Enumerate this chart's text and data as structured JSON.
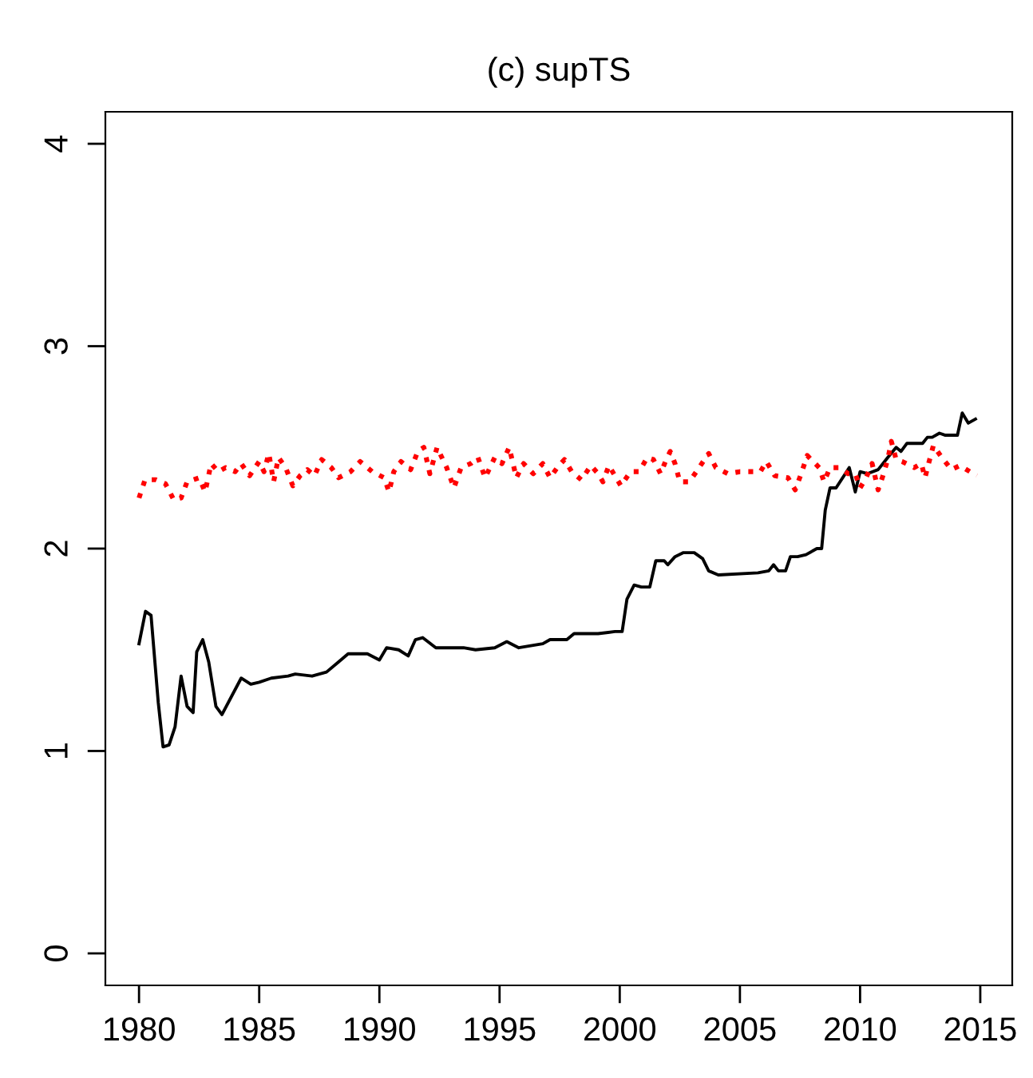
{
  "chart_data": {
    "type": "line",
    "title": "(c) supTS",
    "xlim": [
      1978.6,
      2016.33
    ],
    "ylim": [
      -0.158,
      4.158
    ],
    "xticks": [
      1980,
      1985,
      1990,
      1995,
      2000,
      2005,
      2010,
      2015
    ],
    "yticks": [
      0,
      1,
      2,
      3,
      4
    ],
    "grid": false,
    "legend": false,
    "series": [
      {
        "color": "#000000",
        "line_style": "solid",
        "x": [
          1980.0,
          1980.27,
          1980.5,
          1980.8,
          1981.0,
          1981.25,
          1981.5,
          1981.75,
          1982.0,
          1982.25,
          1982.4,
          1982.65,
          1982.9,
          1983.2,
          1983.45,
          1984.25,
          1984.65,
          1985.0,
          1985.5,
          1986.2,
          1986.5,
          1987.2,
          1987.8,
          1988.3,
          1988.7,
          1989.5,
          1990.0,
          1990.3,
          1990.8,
          1991.2,
          1991.5,
          1991.8,
          1992.35,
          1993.5,
          1994.0,
          1994.8,
          1995.3,
          1995.8,
          1996.8,
          1997.1,
          1997.8,
          1998.1,
          1999.1,
          1999.8,
          2000.1,
          2000.3,
          2000.6,
          2000.9,
          2001.25,
          2001.5,
          2001.85,
          2002.0,
          2002.3,
          2002.65,
          2003.1,
          2003.45,
          2003.7,
          2004.1,
          2005.75,
          2006.2,
          2006.4,
          2006.6,
          2006.9,
          2007.1,
          2007.4,
          2007.75,
          2008.2,
          2008.4,
          2008.55,
          2008.75,
          2009.0,
          2009.55,
          2009.8,
          2010.0,
          2010.3,
          2010.75,
          2011.15,
          2011.5,
          2011.7,
          2011.95,
          2012.6,
          2012.8,
          2013.0,
          2013.3,
          2013.55,
          2014.05,
          2014.25,
          2014.5,
          2014.8
        ],
        "values": [
          1.53,
          1.69,
          1.67,
          1.24,
          1.02,
          1.03,
          1.12,
          1.37,
          1.22,
          1.19,
          1.49,
          1.55,
          1.44,
          1.22,
          1.18,
          1.36,
          1.33,
          1.34,
          1.36,
          1.37,
          1.38,
          1.37,
          1.39,
          1.44,
          1.48,
          1.48,
          1.45,
          1.51,
          1.5,
          1.47,
          1.55,
          1.56,
          1.51,
          1.51,
          1.5,
          1.51,
          1.54,
          1.51,
          1.53,
          1.55,
          1.55,
          1.58,
          1.58,
          1.59,
          1.59,
          1.75,
          1.82,
          1.81,
          1.81,
          1.94,
          1.94,
          1.92,
          1.96,
          1.98,
          1.98,
          1.95,
          1.89,
          1.87,
          1.88,
          1.89,
          1.92,
          1.89,
          1.89,
          1.96,
          1.96,
          1.97,
          2.0,
          2.0,
          2.19,
          2.3,
          2.3,
          2.4,
          2.28,
          2.38,
          2.37,
          2.39,
          2.45,
          2.5,
          2.48,
          2.52,
          2.52,
          2.55,
          2.55,
          2.57,
          2.56,
          2.56,
          2.67,
          2.62,
          2.64
        ]
      },
      {
        "color": "#ff0000",
        "line_style": "dotted",
        "x": [
          1980.0,
          1980.25,
          1980.7,
          1981.1,
          1981.45,
          1981.75,
          1982.0,
          1982.5,
          1982.75,
          1983.0,
          1983.3,
          1983.6,
          1984.0,
          1984.25,
          1984.6,
          1985.0,
          1985.2,
          1985.4,
          1985.6,
          1985.8,
          1986.1,
          1986.4,
          1986.7,
          1987.0,
          1987.3,
          1987.6,
          1988.0,
          1988.3,
          1988.8,
          1989.2,
          1989.7,
          1990.2,
          1990.4,
          1990.6,
          1990.9,
          1991.3,
          1991.6,
          1991.85,
          1992.1,
          1992.4,
          1992.8,
          1993.1,
          1993.4,
          1993.8,
          1994.1,
          1994.4,
          1994.8,
          1995.1,
          1995.4,
          1995.7,
          1996.0,
          1996.4,
          1996.8,
          1997.1,
          1997.4,
          1997.7,
          1998.0,
          1998.4,
          1998.8,
          1999.1,
          1999.3,
          1999.55,
          2000.05,
          2000.45,
          2000.8,
          2001.15,
          2001.4,
          2001.7,
          2001.9,
          2002.1,
          2002.3,
          2002.5,
          2002.9,
          2003.3,
          2003.7,
          2004.0,
          2004.5,
          2005.0,
          2005.4,
          2005.85,
          2006.1,
          2006.45,
          2007.0,
          2007.3,
          2007.55,
          2007.8,
          2008.3,
          2008.5,
          2008.75,
          2009.15,
          2009.5,
          2009.8,
          2010.0,
          2010.25,
          2010.5,
          2010.75,
          2010.95,
          2011.15,
          2011.3,
          2011.5,
          2011.75,
          2012.25,
          2012.55,
          2012.7,
          2012.85,
          2013.05,
          2013.4,
          2013.8,
          2014.15,
          2014.85
        ],
        "values": [
          2.25,
          2.34,
          2.34,
          2.32,
          2.24,
          2.25,
          2.33,
          2.35,
          2.28,
          2.42,
          2.38,
          2.4,
          2.38,
          2.42,
          2.36,
          2.43,
          2.38,
          2.47,
          2.33,
          2.45,
          2.4,
          2.31,
          2.36,
          2.39,
          2.36,
          2.44,
          2.4,
          2.35,
          2.38,
          2.43,
          2.38,
          2.35,
          2.28,
          2.38,
          2.43,
          2.39,
          2.48,
          2.5,
          2.37,
          2.5,
          2.4,
          2.3,
          2.4,
          2.42,
          2.45,
          2.35,
          2.45,
          2.42,
          2.5,
          2.35,
          2.42,
          2.37,
          2.42,
          2.35,
          2.4,
          2.44,
          2.38,
          2.34,
          2.41,
          2.37,
          2.33,
          2.41,
          2.31,
          2.38,
          2.38,
          2.45,
          2.44,
          2.37,
          2.43,
          2.48,
          2.42,
          2.33,
          2.33,
          2.4,
          2.47,
          2.4,
          2.37,
          2.38,
          2.38,
          2.38,
          2.43,
          2.36,
          2.35,
          2.29,
          2.37,
          2.46,
          2.4,
          2.33,
          2.4,
          2.4,
          2.37,
          2.37,
          2.3,
          2.35,
          2.42,
          2.29,
          2.36,
          2.44,
          2.53,
          2.44,
          2.43,
          2.4,
          2.42,
          2.35,
          2.42,
          2.51,
          2.45,
          2.39,
          2.41,
          2.36
        ]
      }
    ]
  }
}
